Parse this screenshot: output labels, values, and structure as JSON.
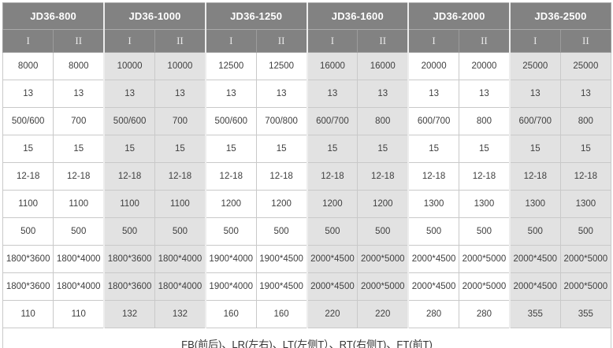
{
  "colors": {
    "header_bg": "#828282",
    "header_text": "#ffffff",
    "subheader_text": "#e9e9e9",
    "alt_column_bg": "#e2e2e2",
    "body_text": "#3f3f3f",
    "grid_border": "#c9c9c9",
    "group_separator": "#ededed"
  },
  "chart_data": {
    "type": "table",
    "column_groups": [
      {
        "label": "JD36-800",
        "subcolumns": [
          "I",
          "II"
        ]
      },
      {
        "label": "JD36-1000",
        "subcolumns": [
          "I",
          "II"
        ]
      },
      {
        "label": "JD36-1250",
        "subcolumns": [
          "I",
          "II"
        ]
      },
      {
        "label": "JD36-1600",
        "subcolumns": [
          "I",
          "II"
        ]
      },
      {
        "label": "JD36-2000",
        "subcolumns": [
          "I",
          "II"
        ]
      },
      {
        "label": "JD36-2500",
        "subcolumns": [
          "I",
          "II"
        ]
      }
    ],
    "rows": [
      [
        "8000",
        "8000",
        "10000",
        "10000",
        "12500",
        "12500",
        "16000",
        "16000",
        "20000",
        "20000",
        "25000",
        "25000"
      ],
      [
        "13",
        "13",
        "13",
        "13",
        "13",
        "13",
        "13",
        "13",
        "13",
        "13",
        "13",
        "13"
      ],
      [
        "500/600",
        "700",
        "500/600",
        "700",
        "500/600",
        "700/800",
        "600/700",
        "800",
        "600/700",
        "800",
        "600/700",
        "800"
      ],
      [
        "15",
        "15",
        "15",
        "15",
        "15",
        "15",
        "15",
        "15",
        "15",
        "15",
        "15",
        "15"
      ],
      [
        "12-18",
        "12-18",
        "12-18",
        "12-18",
        "12-18",
        "12-18",
        "12-18",
        "12-18",
        "12-18",
        "12-18",
        "12-18",
        "12-18"
      ],
      [
        "1100",
        "1100",
        "1100",
        "1100",
        "1200",
        "1200",
        "1200",
        "1200",
        "1300",
        "1300",
        "1300",
        "1300"
      ],
      [
        "500",
        "500",
        "500",
        "500",
        "500",
        "500",
        "500",
        "500",
        "500",
        "500",
        "500",
        "500"
      ],
      [
        "1800*3600",
        "1800*4000",
        "1800*3600",
        "1800*4000",
        "1900*4000",
        "1900*4500",
        "2000*4500",
        "2000*5000",
        "2000*4500",
        "2000*5000",
        "2000*4500",
        "2000*5000"
      ],
      [
        "1800*3600",
        "1800*4000",
        "1800*3600",
        "1800*4000",
        "1900*4000",
        "1900*4500",
        "2000*4500",
        "2000*5000",
        "2000*4500",
        "2000*5000",
        "2000*4500",
        "2000*5000"
      ],
      [
        "110",
        "110",
        "132",
        "132",
        "160",
        "160",
        "220",
        "220",
        "280",
        "280",
        "355",
        "355"
      ]
    ],
    "footer": "FB(前后)、LR(左右)、LT(左侧T）、RT(右侧T)、FT(前T)"
  }
}
